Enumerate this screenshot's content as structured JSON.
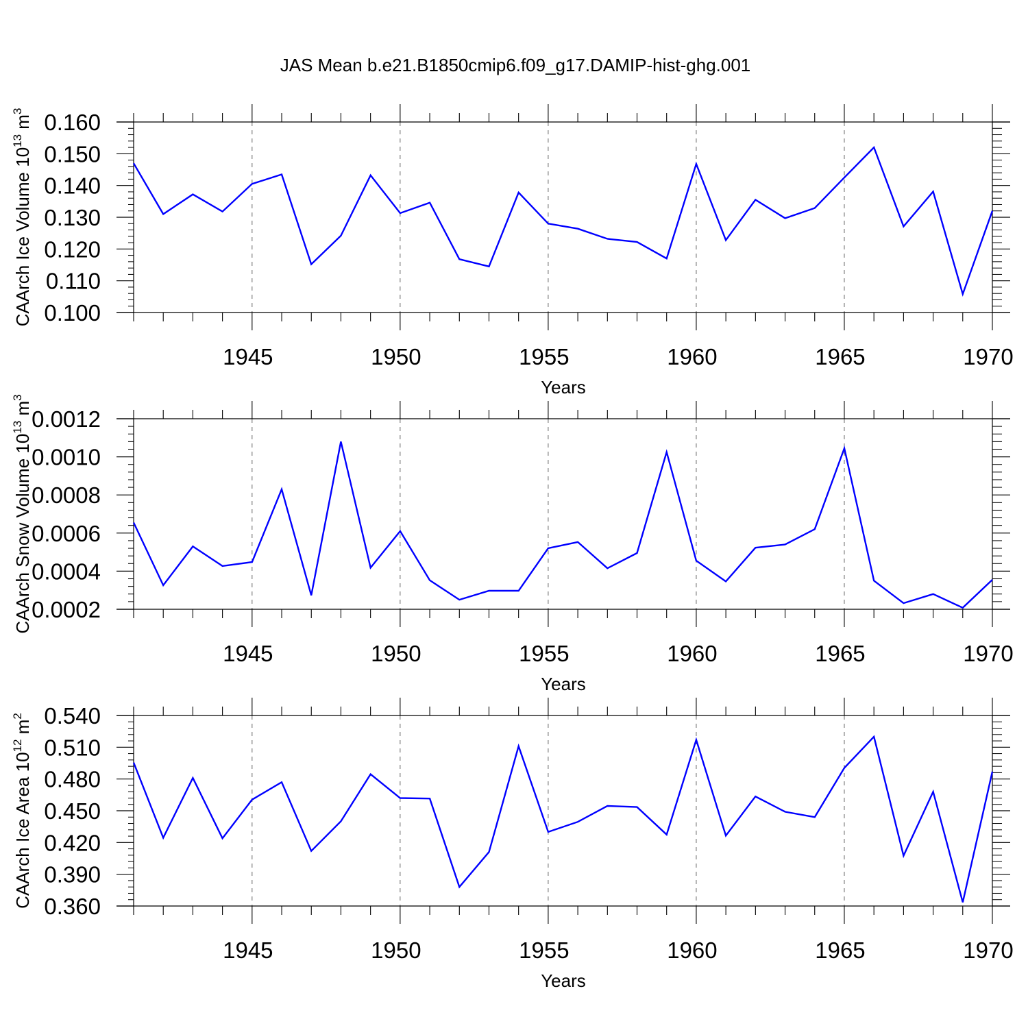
{
  "figure": {
    "title": "JAS Mean b.e21.B1850cmip6.f09_g17.DAMIP-hist-ghg.001"
  },
  "chart_data": [
    {
      "type": "line",
      "xlabel": "Years",
      "ylabel": {
        "text": "CAArch Ice Volume 10",
        "sup": "13",
        "unit": "m",
        "unit_sup": "3"
      },
      "xlim": [
        1941,
        1970
      ],
      "ylim": [
        0.1,
        0.16
      ],
      "x_ticks": [
        1945,
        1950,
        1955,
        1960,
        1965,
        1970
      ],
      "y_ticks": [
        "0.100",
        "0.110",
        "0.120",
        "0.130",
        "0.140",
        "0.150",
        "0.160"
      ],
      "y_tick_values": [
        0.1,
        0.11,
        0.12,
        0.13,
        0.14,
        0.15,
        0.16
      ],
      "grid": "dashed vertical at major x ticks",
      "color": "#0000ff",
      "x": [
        1941,
        1942,
        1943,
        1944,
        1945,
        1946,
        1947,
        1948,
        1949,
        1950,
        1951,
        1952,
        1953,
        1954,
        1955,
        1956,
        1957,
        1958,
        1959,
        1960,
        1961,
        1962,
        1963,
        1964,
        1965,
        1966,
        1967,
        1968,
        1969,
        1970
      ],
      "values": [
        0.147,
        0.131,
        0.1372,
        0.1318,
        0.1405,
        0.1435,
        0.1152,
        0.1242,
        0.1432,
        0.1313,
        0.1346,
        0.1168,
        0.1145,
        0.1378,
        0.128,
        0.1264,
        0.1232,
        0.1222,
        0.117,
        0.1468,
        0.1228,
        0.1355,
        0.1297,
        0.1329,
        0.1425,
        0.152,
        0.1271,
        0.1381,
        0.1058,
        0.132
      ]
    },
    {
      "type": "line",
      "xlabel": "Years",
      "ylabel": {
        "text": "CAArch Snow Volume 10",
        "sup": "13",
        "unit": "m",
        "unit_sup": "3"
      },
      "xlim": [
        1941,
        1970
      ],
      "ylim": [
        0.0002,
        0.0012
      ],
      "x_ticks": [
        1945,
        1950,
        1955,
        1960,
        1965,
        1970
      ],
      "y_ticks": [
        "0.0002",
        "0.0004",
        "0.0006",
        "0.0008",
        "0.0010",
        "0.0012"
      ],
      "y_tick_values": [
        0.0002,
        0.0004,
        0.0006,
        0.0008,
        0.001,
        0.0012
      ],
      "grid": "dashed vertical at major x ticks",
      "color": "#0000ff",
      "x": [
        1941,
        1942,
        1943,
        1944,
        1945,
        1946,
        1947,
        1948,
        1949,
        1950,
        1951,
        1952,
        1953,
        1954,
        1955,
        1956,
        1957,
        1958,
        1959,
        1960,
        1961,
        1962,
        1963,
        1964,
        1965,
        1966,
        1967,
        1968,
        1969,
        1970
      ],
      "values": [
        0.000655,
        0.000326,
        0.00053,
        0.000427,
        0.000448,
        0.00083,
        0.000273,
        0.00108,
        0.000418,
        0.00061,
        0.000352,
        0.00025,
        0.000297,
        0.000297,
        0.00052,
        0.000553,
        0.000415,
        0.000495,
        0.001025,
        0.000455,
        0.000346,
        0.000523,
        0.00054,
        0.00062,
        0.001045,
        0.00035,
        0.000232,
        0.00028,
        0.000208,
        0.000355
      ]
    },
    {
      "type": "line",
      "xlabel": "Years",
      "ylabel": {
        "text": "CAArch Ice Area 10",
        "sup": "12",
        "unit": "m",
        "unit_sup": "2"
      },
      "xlim": [
        1941,
        1970
      ],
      "ylim": [
        0.36,
        0.54
      ],
      "x_ticks": [
        1945,
        1950,
        1955,
        1960,
        1965,
        1970
      ],
      "y_ticks": [
        "0.360",
        "0.390",
        "0.420",
        "0.450",
        "0.480",
        "0.510",
        "0.540"
      ],
      "y_tick_values": [
        0.36,
        0.39,
        0.42,
        0.45,
        0.48,
        0.51,
        0.54
      ],
      "grid": "dashed vertical at major x ticks",
      "color": "#0000ff",
      "x": [
        1941,
        1942,
        1943,
        1944,
        1945,
        1946,
        1947,
        1948,
        1949,
        1950,
        1951,
        1952,
        1953,
        1954,
        1955,
        1956,
        1957,
        1958,
        1959,
        1960,
        1961,
        1962,
        1963,
        1964,
        1965,
        1966,
        1967,
        1968,
        1969,
        1970
      ],
      "values": [
        0.4955,
        0.4245,
        0.481,
        0.424,
        0.4605,
        0.477,
        0.412,
        0.44,
        0.4845,
        0.462,
        0.4615,
        0.378,
        0.411,
        0.511,
        0.43,
        0.4395,
        0.4545,
        0.4535,
        0.4275,
        0.517,
        0.4265,
        0.4635,
        0.449,
        0.444,
        0.4905,
        0.52,
        0.4075,
        0.468,
        0.3635,
        0.487
      ]
    }
  ]
}
